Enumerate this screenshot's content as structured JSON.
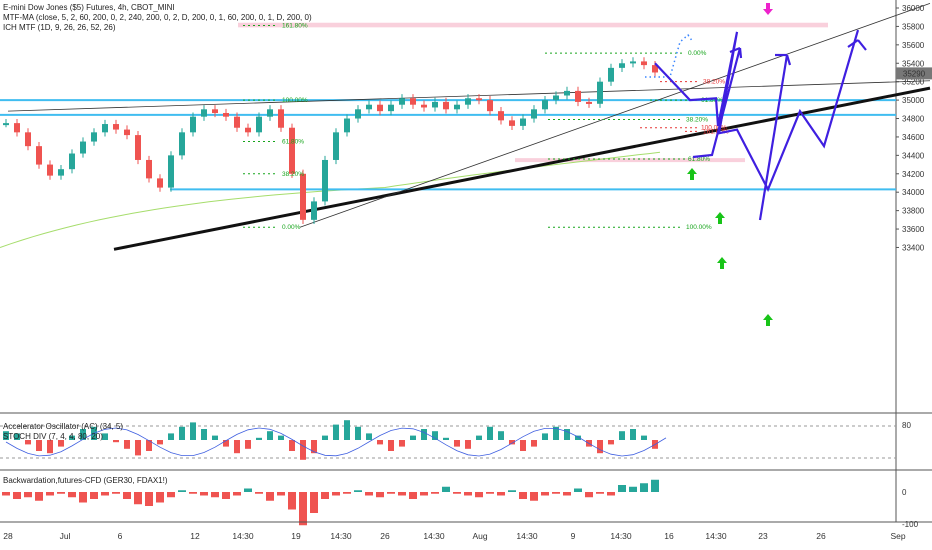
{
  "legend": {
    "symbol": "E-mini Dow Jones ($5) Futures, 4h, CBOT_MINI",
    "mtf_ma": "MTF-MA (close, 5, 2, 60, 200, 0, 2, 240, 200, 0, 2, D, 200, 0, 1, 60, 200, 0, 1, D, 200, 0)",
    "ichimoku": "ICH MTF (1D, 9, 26, 26, 52, 26)",
    "osc1": "Accelerator Oscillator (AC) (34, 5)",
    "osc2": "STOCH DIV (7, 4, 4, 80, 20)",
    "osc3": "Backwardation,futures-CFD (GER30, FDAX1!)"
  },
  "colors": {
    "bull": "#26a69a",
    "bear": "#ef5350",
    "support": "#40bdf0",
    "forecast": "#3f1fe0",
    "signal_up": "#18c418",
    "signal_down": "#ee22cc",
    "fib_green": "#17a51c",
    "fib_red": "#e53535",
    "zone": "#f9d0dc",
    "ma": "#a6dd6c",
    "price_badge": "#777777"
  },
  "chart_data": [
    {
      "type": "candlestick",
      "title": "E-mini Dow Jones ($5) Futures, 4h, CBOT_MINI",
      "ylim": [
        33400,
        36000
      ],
      "y_ticks": [
        "36000",
        "35800",
        "35600",
        "35400",
        "35200",
        "35000",
        "34800",
        "34600",
        "34400",
        "34200",
        "34000",
        "33800",
        "33600",
        "33400"
      ],
      "current_price": "35290",
      "x_ticks": [
        "28",
        "Jul",
        "6",
        "12",
        "14:30",
        "19",
        "14:30",
        "26",
        "14:30",
        "Aug",
        "14:30",
        "9",
        "14:30",
        "16",
        "14:30",
        "23",
        "26",
        "Sep"
      ],
      "candles_approx": [
        [
          0,
          34750
        ],
        [
          1,
          34650
        ],
        [
          2,
          34500
        ],
        [
          3,
          34300
        ],
        [
          4,
          34180
        ],
        [
          5,
          34250
        ],
        [
          6,
          34420
        ],
        [
          7,
          34550
        ],
        [
          8,
          34650
        ],
        [
          9,
          34740
        ],
        [
          10,
          34680
        ],
        [
          11,
          34620
        ],
        [
          12,
          34350
        ],
        [
          13,
          34150
        ],
        [
          14,
          34050
        ],
        [
          15,
          34400
        ],
        [
          16,
          34650
        ],
        [
          17,
          34820
        ],
        [
          18,
          34900
        ],
        [
          19,
          34860
        ],
        [
          20,
          34820
        ],
        [
          21,
          34700
        ],
        [
          22,
          34650
        ],
        [
          23,
          34820
        ],
        [
          24,
          34900
        ],
        [
          25,
          34700
        ],
        [
          26,
          34200
        ],
        [
          27,
          33700
        ],
        [
          28,
          33900
        ],
        [
          29,
          34350
        ],
        [
          30,
          34650
        ],
        [
          31,
          34800
        ],
        [
          32,
          34900
        ],
        [
          33,
          34950
        ],
        [
          34,
          34880
        ],
        [
          35,
          34950
        ],
        [
          36,
          35020
        ],
        [
          37,
          34950
        ],
        [
          38,
          34920
        ],
        [
          39,
          34980
        ],
        [
          40,
          34900
        ],
        [
          41,
          34950
        ],
        [
          42,
          35020
        ],
        [
          43,
          35000
        ],
        [
          44,
          34880
        ],
        [
          45,
          34780
        ],
        [
          46,
          34720
        ],
        [
          47,
          34800
        ],
        [
          48,
          34900
        ],
        [
          49,
          35000
        ],
        [
          50,
          35050
        ],
        [
          51,
          35100
        ],
        [
          52,
          34980
        ],
        [
          53,
          34960
        ],
        [
          54,
          35200
        ],
        [
          55,
          35350
        ],
        [
          56,
          35400
        ],
        [
          57,
          35420
        ],
        [
          58,
          35380
        ],
        [
          59,
          35300
        ]
      ],
      "horizontal_levels": [
        35000,
        34840,
        34030
      ],
      "trendlines": [
        {
          "name": "black support trendline",
          "from": [
            "Jul 14",
            33380
          ],
          "to": [
            "Sep 1",
            35130
          ]
        },
        {
          "name": "thin channel line",
          "from": [
            "Jun 28",
            34880
          ],
          "to": [
            "Sep 1",
            35210
          ]
        },
        {
          "name": "thin rising trendline",
          "from": [
            "Jul 20",
            33620
          ],
          "to": [
            "Sep 1",
            36050
          ]
        }
      ],
      "zones": [
        {
          "low": 35790,
          "high": 35840
        },
        {
          "low": 34340,
          "high": 34370
        }
      ],
      "fib_left": {
        "levels": [
          "161.80%",
          "100.00%",
          "61.80%",
          "38.20%",
          "0.00%"
        ],
        "prices": [
          35810,
          35000,
          34550,
          34200,
          33620
        ]
      },
      "fib_right": {
        "levels": [
          "0.00%",
          "38.20%",
          "61.80%",
          "100.00%",
          "161.80%",
          "61.80%",
          "38.20%",
          "100.00%"
        ],
        "prices": [
          35510,
          35200,
          35000,
          34700,
          34660,
          34360,
          34790,
          33620
        ]
      },
      "forecast_path": [
        [
          "Aug 16",
          35400
        ],
        [
          "Aug 17",
          35000
        ],
        [
          "Aug 18",
          35020
        ],
        [
          "Aug 20",
          34720
        ],
        [
          "Aug 22",
          35740
        ],
        [
          "Aug 21",
          34640
        ],
        [
          "Aug 22",
          34680
        ],
        [
          "Aug 23",
          34030
        ],
        [
          "Aug 24",
          34880
        ],
        [
          "Aug 25",
          34500
        ],
        [
          "Aug 27",
          35760
        ]
      ]
    },
    {
      "type": "bar",
      "title": "Accelerator Oscillator (AC) (34, 5) / STOCH DIV (7, 4, 4, 80, 20)",
      "y_ticks": [
        "80"
      ],
      "values_approx": [
        0.4,
        0.3,
        -0.2,
        -0.5,
        -0.6,
        -0.3,
        0.2,
        0.5,
        0.6,
        0.3,
        -0.1,
        -0.4,
        -0.7,
        -0.5,
        -0.2,
        0.3,
        0.6,
        0.8,
        0.5,
        0.2,
        -0.3,
        -0.6,
        -0.4,
        0.1,
        0.4,
        0.2,
        -0.5,
        -0.9,
        -0.6,
        0.2,
        0.7,
        0.9,
        0.6,
        0.3,
        -0.2,
        -0.5,
        -0.3,
        0.2,
        0.5,
        0.4,
        0.1,
        -0.3,
        -0.4,
        0.2,
        0.6,
        0.4,
        -0.2,
        -0.5,
        -0.3,
        0.3,
        0.6,
        0.5,
        0.2,
        -0.3,
        -0.6,
        -0.2,
        0.4,
        0.5,
        0.2,
        -0.4
      ]
    },
    {
      "type": "bar",
      "title": "Backwardation,futures-CFD (GER30, FDAX1!)",
      "y_ticks": [
        "0",
        "-100"
      ],
      "values_approx": [
        -10,
        -20,
        -15,
        -25,
        -10,
        -5,
        -15,
        -30,
        -20,
        -10,
        -5,
        -20,
        -35,
        -40,
        -30,
        -15,
        5,
        -5,
        -10,
        -15,
        -20,
        -10,
        10,
        -5,
        -25,
        -10,
        -50,
        -95,
        -60,
        -20,
        -10,
        -5,
        5,
        -10,
        -15,
        -5,
        -10,
        -20,
        -10,
        -5,
        15,
        -5,
        -10,
        -15,
        -5,
        -10,
        5,
        -20,
        -25,
        -10,
        -5,
        -10,
        10,
        -15,
        -5,
        -10,
        20,
        15,
        25,
        35
      ]
    }
  ]
}
